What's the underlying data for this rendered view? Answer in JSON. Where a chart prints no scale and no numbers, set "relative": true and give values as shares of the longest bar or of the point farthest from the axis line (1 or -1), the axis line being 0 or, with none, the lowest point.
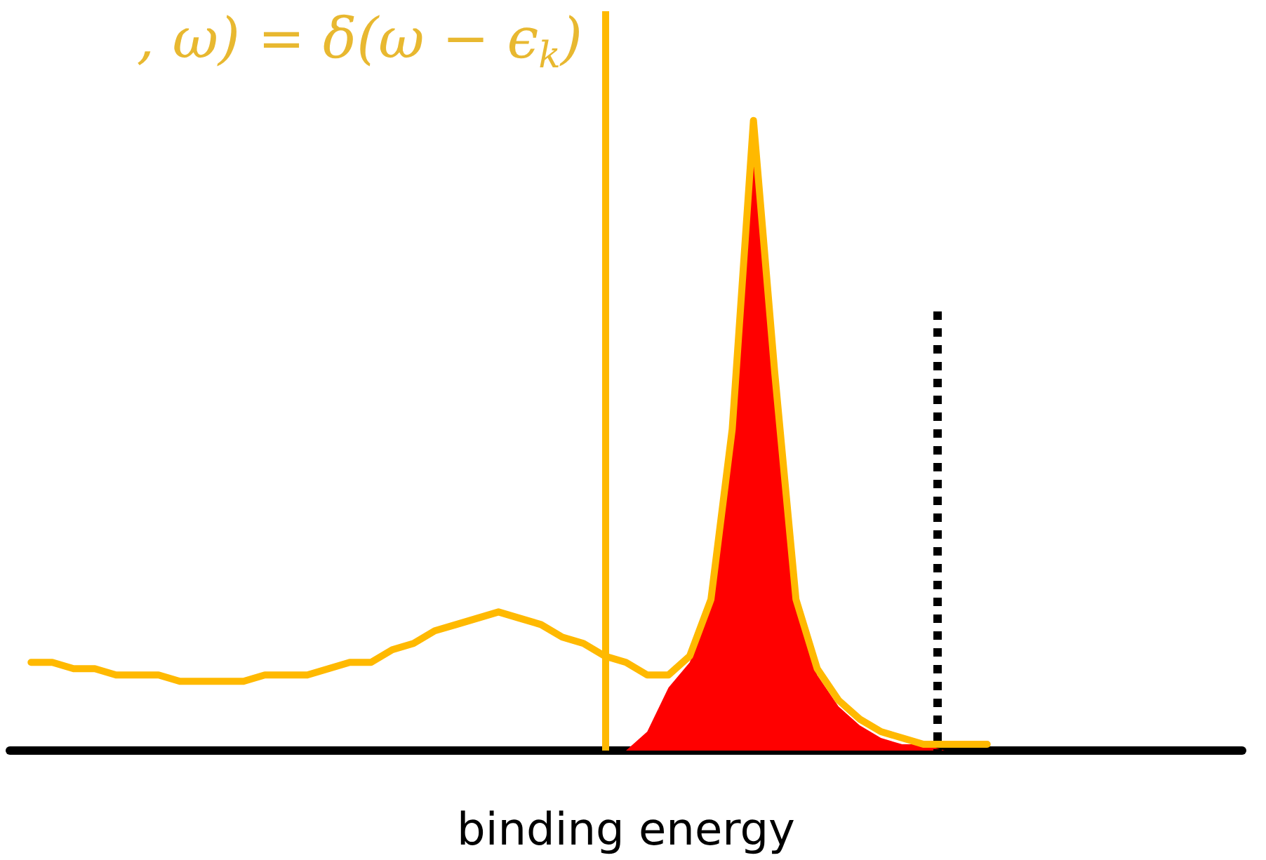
{
  "chart_data": {
    "type": "line",
    "relative": true,
    "xlabel": "binding energy",
    "annotations": [
      ", ω) = δ(ω − ϵ$_{k}$)"
    ],
    "categories": [
      null,
      null,
      null,
      null,
      null,
      null,
      null,
      null,
      null,
      null,
      null,
      null,
      null,
      null,
      null,
      null,
      null,
      null,
      null,
      null,
      null,
      null,
      null,
      null,
      null,
      null,
      null,
      null,
      null,
      null,
      null,
      null,
      null,
      null,
      null,
      null,
      null,
      null,
      null,
      null,
      null,
      null,
      null,
      null,
      null,
      null,
      null,
      null,
      null,
      null,
      null,
      null,
      null,
      null,
      null,
      null,
      null,
      null,
      null
    ],
    "series": [
      {
        "type": "area",
        "color": "#ff0000",
        "values": [
          null,
          null,
          null,
          null,
          null,
          null,
          null,
          null,
          null,
          null,
          null,
          null,
          null,
          null,
          null,
          null,
          null,
          null,
          null,
          null,
          null,
          null,
          null,
          null,
          null,
          null,
          null,
          null,
          null,
          0,
          0.03,
          0.1,
          0.14,
          0.23,
          0.5,
          0.98,
          0.58,
          0.23,
          0.12,
          0.07,
          0.04,
          0.02,
          0.01,
          0.01,
          0,
          null,
          null,
          null,
          null,
          null,
          null,
          null,
          null,
          null,
          null,
          null,
          null,
          null,
          null
        ]
      },
      {
        "color": "#ffb900",
        "values": [
          null,
          0.14,
          0.14,
          0.13,
          0.13,
          0.12,
          0.12,
          0.12,
          0.11,
          0.11,
          0.11,
          0.11,
          0.12,
          0.12,
          0.12,
          0.13,
          0.14,
          0.14,
          0.16,
          0.17,
          0.19,
          0.2,
          0.21,
          0.22,
          0.21,
          0.2,
          0.18,
          0.17,
          0.15,
          0.14,
          0.12,
          0.12,
          0.15,
          0.24,
          0.51,
          1,
          0.6,
          0.24,
          0.13,
          0.08,
          0.05,
          0.03,
          0.02,
          0.01,
          0.01,
          0.01,
          0.01,
          null,
          null,
          null,
          null,
          null,
          null,
          null,
          null,
          null,
          null,
          null,
          null
        ]
      }
    ],
    "grid": false,
    "marker": "none"
  }
}
